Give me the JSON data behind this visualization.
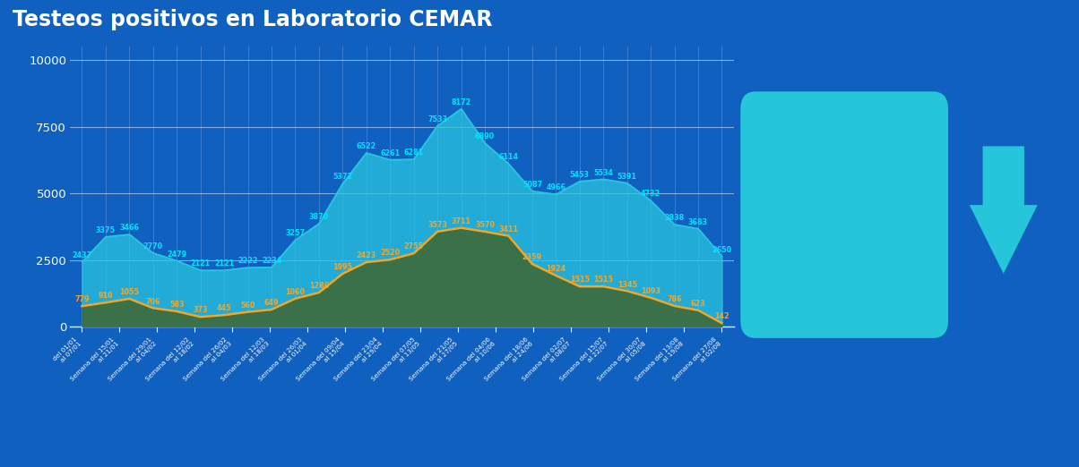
{
  "title": "Testeos positivos en Laboratorio CEMAR",
  "title_fontsize": 17,
  "background_color": "#1060C0",
  "plot_bg_color": "#1060C0",
  "x_labels": [
    " del 01/01\nal 07/01",
    "Semana del 15/01\nal 21/01",
    "Semana del 29/01\nal 04/02",
    "Semana del 12/02\nal 18/02",
    "Semana del 26/02\nal 04/03",
    "Semana del 12/03\nal 18/03",
    "Semana del 26/03\nal 01/04",
    "Semana del 09/04\nal 15/04",
    "Semana del 23/04\nal 29/04",
    "Semana del 07/05\nal 13/05",
    "Semana del 21/05\nal 27/05",
    "Semana del 04/06\nal 10/06",
    "Semana del 18/06\nal 24/06",
    "Semana del 02/07\nal 08/07",
    "Semana del 15/07\nal 22/07",
    "Semana del 30/07\nal 05/08",
    "Semana del 13/08\nal 19/08",
    "Semana del 27/08\nal 02/08"
  ],
  "total_tests": [
    2437,
    3375,
    3466,
    2770,
    2479,
    2121,
    2121,
    2222,
    2234,
    3257,
    3870,
    5372,
    6522,
    6261,
    6281,
    7533,
    8172,
    6890,
    6114,
    5087,
    4966,
    5453,
    5534,
    5391,
    4732,
    3838,
    3683,
    2650
  ],
  "positives": [
    779,
    910,
    1055,
    706,
    583,
    373,
    445,
    560,
    649,
    1060,
    1286,
    1995,
    2423,
    2520,
    2755,
    3573,
    3711,
    3570,
    3411,
    2359,
    1924,
    1515,
    1515,
    1345,
    1093,
    786,
    623,
    142
  ],
  "total_color": "#29C5E0",
  "positive_color": "#F5A623",
  "positive_area_color": "#3D6B3A",
  "yticks": [
    0,
    2500,
    5000,
    7500,
    10000
  ],
  "ylim": [
    0,
    10500
  ],
  "box_color": "#26C6DA",
  "arrow_color": "#26C6DA",
  "total_label_color": "#00E5FF",
  "pos_label_color": "#F5A623"
}
